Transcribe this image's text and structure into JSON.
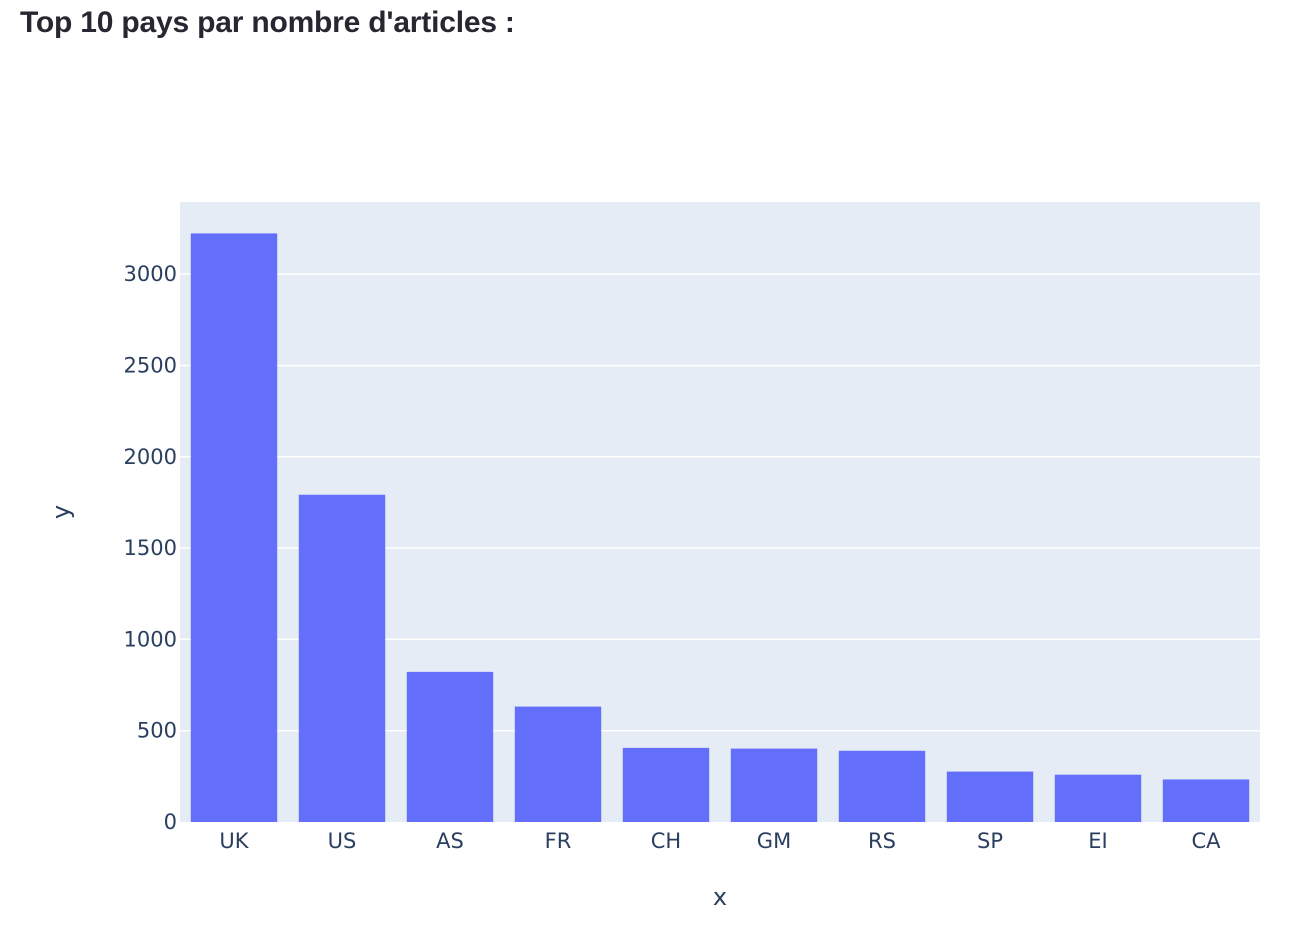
{
  "page": {
    "heading": "Top 10 pays par nombre d'articles :"
  },
  "chart_data": {
    "type": "bar",
    "title": "",
    "xlabel": "x",
    "ylabel": "y",
    "categories": [
      "UK",
      "US",
      "AS",
      "FR",
      "CH",
      "GM",
      "RS",
      "SP",
      "EI",
      "CA"
    ],
    "values": [
      3223,
      1792,
      822,
      632,
      406,
      402,
      390,
      276,
      259,
      233
    ],
    "ylim": [
      0,
      3395
    ],
    "yticks": [
      0,
      500,
      1000,
      1500,
      2000,
      2500,
      3000
    ],
    "grid": true,
    "legend": "none",
    "colors": {
      "bar": "#636efa",
      "plot_background": "#e5ecf6",
      "gridline": "#ffffff",
      "text": "#2a3f5f"
    }
  }
}
